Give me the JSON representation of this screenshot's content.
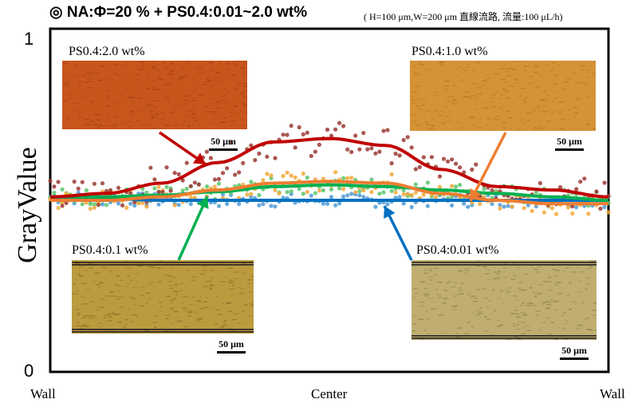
{
  "chart_data": {
    "type": "scatter",
    "title": "◎ NA:Φ=20 % + PS0.4:0.01~2.0 wt%",
    "subtitle": "( H=100 μm,W=200 μm 直線流路, 流量:100 μL/h)",
    "ylabel": "GrayValue",
    "y_ticks": [
      "0",
      "1"
    ],
    "ylim": [
      0,
      1
    ],
    "x_ticks": [
      "Wall",
      "Center",
      "Wall"
    ],
    "x_range": [
      0,
      1
    ],
    "grid": false,
    "series": [
      {
        "name": "PS0.4:2.0 wt%",
        "color": "#C00000",
        "points_color": "#9B3A34",
        "x": [
          0,
          0.1,
          0.2,
          0.3,
          0.4,
          0.5,
          0.6,
          0.7,
          0.8,
          0.9,
          1.0
        ],
        "values": [
          0.51,
          0.52,
          0.55,
          0.61,
          0.67,
          0.68,
          0.66,
          0.59,
          0.54,
          0.53,
          0.51
        ],
        "scatter_amplitude": 0.05
      },
      {
        "name": "PS0.4:1.0 wt%",
        "color": "#ED7D31",
        "points_color": "#F2A93B",
        "x": [
          0,
          0.1,
          0.2,
          0.3,
          0.4,
          0.5,
          0.6,
          0.7,
          0.8,
          0.9,
          1.0
        ],
        "values": [
          0.5,
          0.5,
          0.51,
          0.53,
          0.55,
          0.555,
          0.55,
          0.52,
          0.5,
          0.49,
          0.49
        ],
        "scatter_amplitude": 0.03
      },
      {
        "name": "PS0.4:0.1 wt%",
        "color": "#00B050",
        "points_color": "#5BC46B",
        "x": [
          0,
          0.1,
          0.2,
          0.3,
          0.4,
          0.5,
          0.6,
          0.7,
          0.8,
          0.9,
          1.0
        ],
        "values": [
          0.51,
          0.51,
          0.515,
          0.525,
          0.54,
          0.545,
          0.54,
          0.53,
          0.52,
          0.51,
          0.5
        ],
        "scatter_amplitude": 0.025
      },
      {
        "name": "PS0.4:0.01 wt%",
        "color": "#0070C0",
        "points_color": "#4F9BD6",
        "x": [
          0,
          0.1,
          0.2,
          0.3,
          0.4,
          0.5,
          0.6,
          0.7,
          0.8,
          0.9,
          1.0
        ],
        "values": [
          0.51,
          0.505,
          0.5,
          0.5,
          0.5,
          0.5,
          0.5,
          0.5,
          0.5,
          0.5,
          0.5
        ],
        "scatter_amplitude": 0.02
      }
    ],
    "insets": [
      {
        "label": "PS0.4:2.0 wt%",
        "scale": "50 μm",
        "color": "#C7561D",
        "stripe": "#A63E12"
      },
      {
        "label": "PS0.4:1.0 wt%",
        "scale": "50 μm",
        "color": "#D59236",
        "stripe": "#B9761E"
      },
      {
        "label": "PS0.4:0.1 wt%",
        "scale": "50 μm",
        "color": "#BC9A3E",
        "stripe": "#8E6F24"
      },
      {
        "label": "PS0.4:0.01 wt%",
        "scale": "50 μm",
        "color": "#BFAE70",
        "stripe": "#907E44"
      }
    ]
  }
}
